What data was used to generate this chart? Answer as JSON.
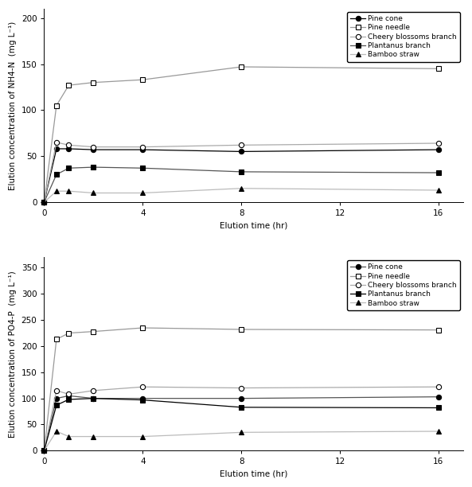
{
  "x_times": [
    0,
    0.5,
    1,
    2,
    4,
    8,
    16
  ],
  "top": {
    "ylabel": "Elution concentration of NH4-N  (mg L⁻¹)",
    "xlabel": "Elution time (hr)",
    "ylim": [
      0,
      210
    ],
    "yticks": [
      0,
      50,
      100,
      150,
      200
    ],
    "xticks": [
      0,
      4,
      8,
      12,
      16
    ],
    "series": [
      {
        "label": "Pine cone",
        "marker": "o",
        "fillstyle": "full",
        "line_color": "#000000",
        "y": [
          0,
          58,
          58,
          57,
          57,
          55,
          57
        ]
      },
      {
        "label": "Pine needle",
        "marker": "s",
        "fillstyle": "none",
        "line_color": "#999999",
        "y": [
          0,
          105,
          127,
          130,
          133,
          147,
          145
        ]
      },
      {
        "label": "Cheery blossoms branch",
        "marker": "o",
        "fillstyle": "none",
        "line_color": "#aaaaaa",
        "y": [
          0,
          65,
          62,
          60,
          60,
          62,
          64
        ]
      },
      {
        "label": "Plantanus branch",
        "marker": "s",
        "fillstyle": "full",
        "line_color": "#555555",
        "y": [
          0,
          30,
          37,
          38,
          37,
          33,
          32
        ]
      },
      {
        "label": "Bamboo straw",
        "marker": "^",
        "fillstyle": "full",
        "line_color": "#bbbbbb",
        "y": [
          0,
          12,
          12,
          10,
          10,
          15,
          13
        ]
      }
    ]
  },
  "bottom": {
    "ylabel": "Elution concentration of PO4-P  (mg L⁻¹)",
    "xlabel": "Elution time (hr)",
    "ylim": [
      0,
      370
    ],
    "yticks": [
      0,
      50,
      100,
      150,
      200,
      250,
      300,
      350
    ],
    "xticks": [
      0,
      4,
      8,
      12,
      16
    ],
    "series": [
      {
        "label": "Pine cone",
        "marker": "o",
        "fillstyle": "full",
        "line_color": "#555555",
        "y": [
          0,
          100,
          105,
          100,
          100,
          100,
          103
        ]
      },
      {
        "label": "Pine needle",
        "marker": "s",
        "fillstyle": "none",
        "line_color": "#999999",
        "y": [
          0,
          213,
          225,
          228,
          235,
          232,
          231
        ]
      },
      {
        "label": "Cheery blossoms branch",
        "marker": "o",
        "fillstyle": "none",
        "line_color": "#aaaaaa",
        "y": [
          0,
          115,
          108,
          115,
          122,
          120,
          122
        ]
      },
      {
        "label": "Plantanus branch",
        "marker": "s",
        "fillstyle": "full",
        "line_color": "#000000",
        "y": [
          0,
          87,
          98,
          100,
          97,
          83,
          82
        ]
      },
      {
        "label": "Bamboo straw",
        "marker": "^",
        "fillstyle": "full",
        "line_color": "#bbbbbb",
        "y": [
          0,
          37,
          27,
          27,
          27,
          35,
          37
        ]
      }
    ]
  },
  "legend_fontsize": 6.5,
  "tick_fontsize": 7.5,
  "label_fontsize": 7.5,
  "marker_size": 4.5,
  "line_width": 0.9
}
